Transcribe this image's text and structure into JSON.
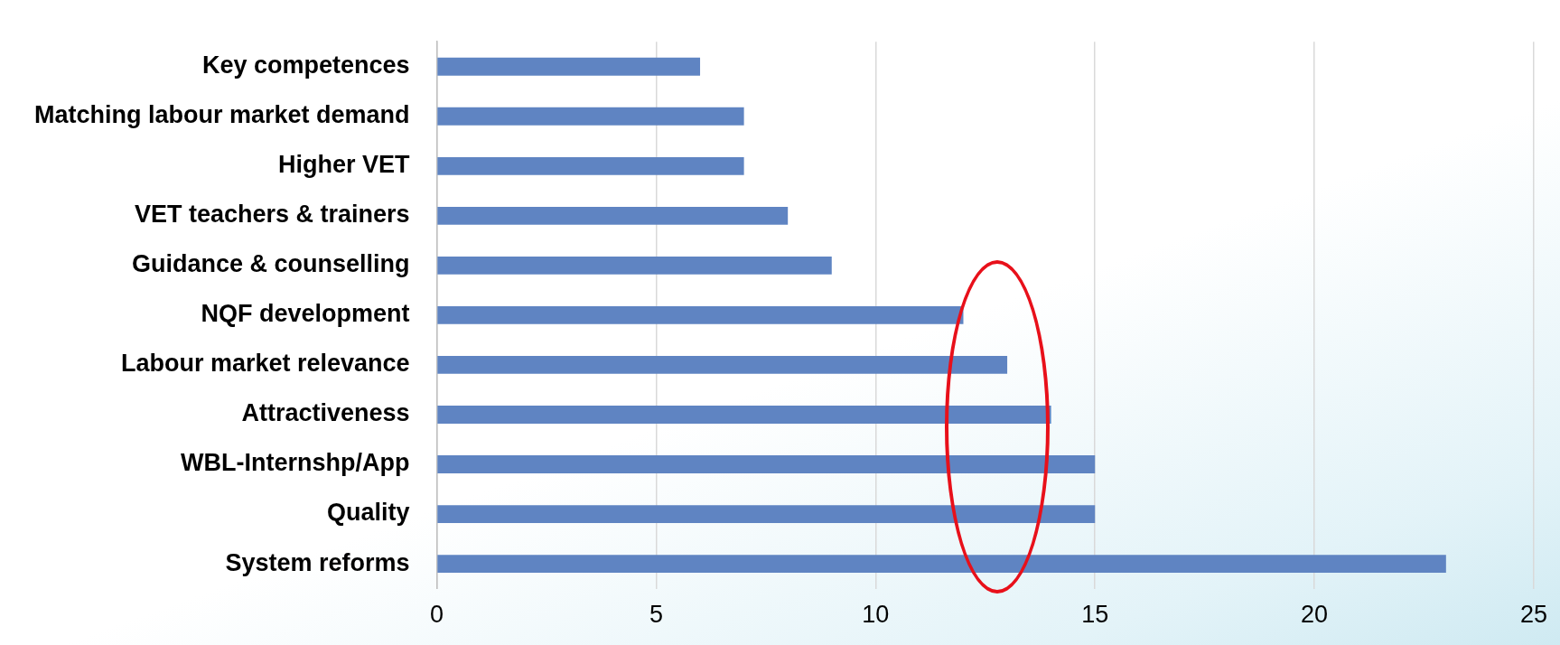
{
  "chart_data": {
    "type": "bar",
    "orientation": "horizontal",
    "categories": [
      "Key competences",
      "Matching labour market demand",
      "Higher VET",
      "VET teachers & trainers",
      "Guidance & counselling",
      "NQF development",
      "Labour market relevance",
      "Attractiveness",
      "WBL-Internshp/App",
      "Quality",
      "System reforms"
    ],
    "values": [
      6,
      7,
      7,
      8,
      9,
      12,
      13,
      14,
      15,
      15,
      23
    ],
    "color": "#5f84c2",
    "xlim": [
      0,
      25
    ],
    "xticks": [
      0,
      5,
      10,
      15,
      20,
      25
    ],
    "grid": "x"
  }
}
